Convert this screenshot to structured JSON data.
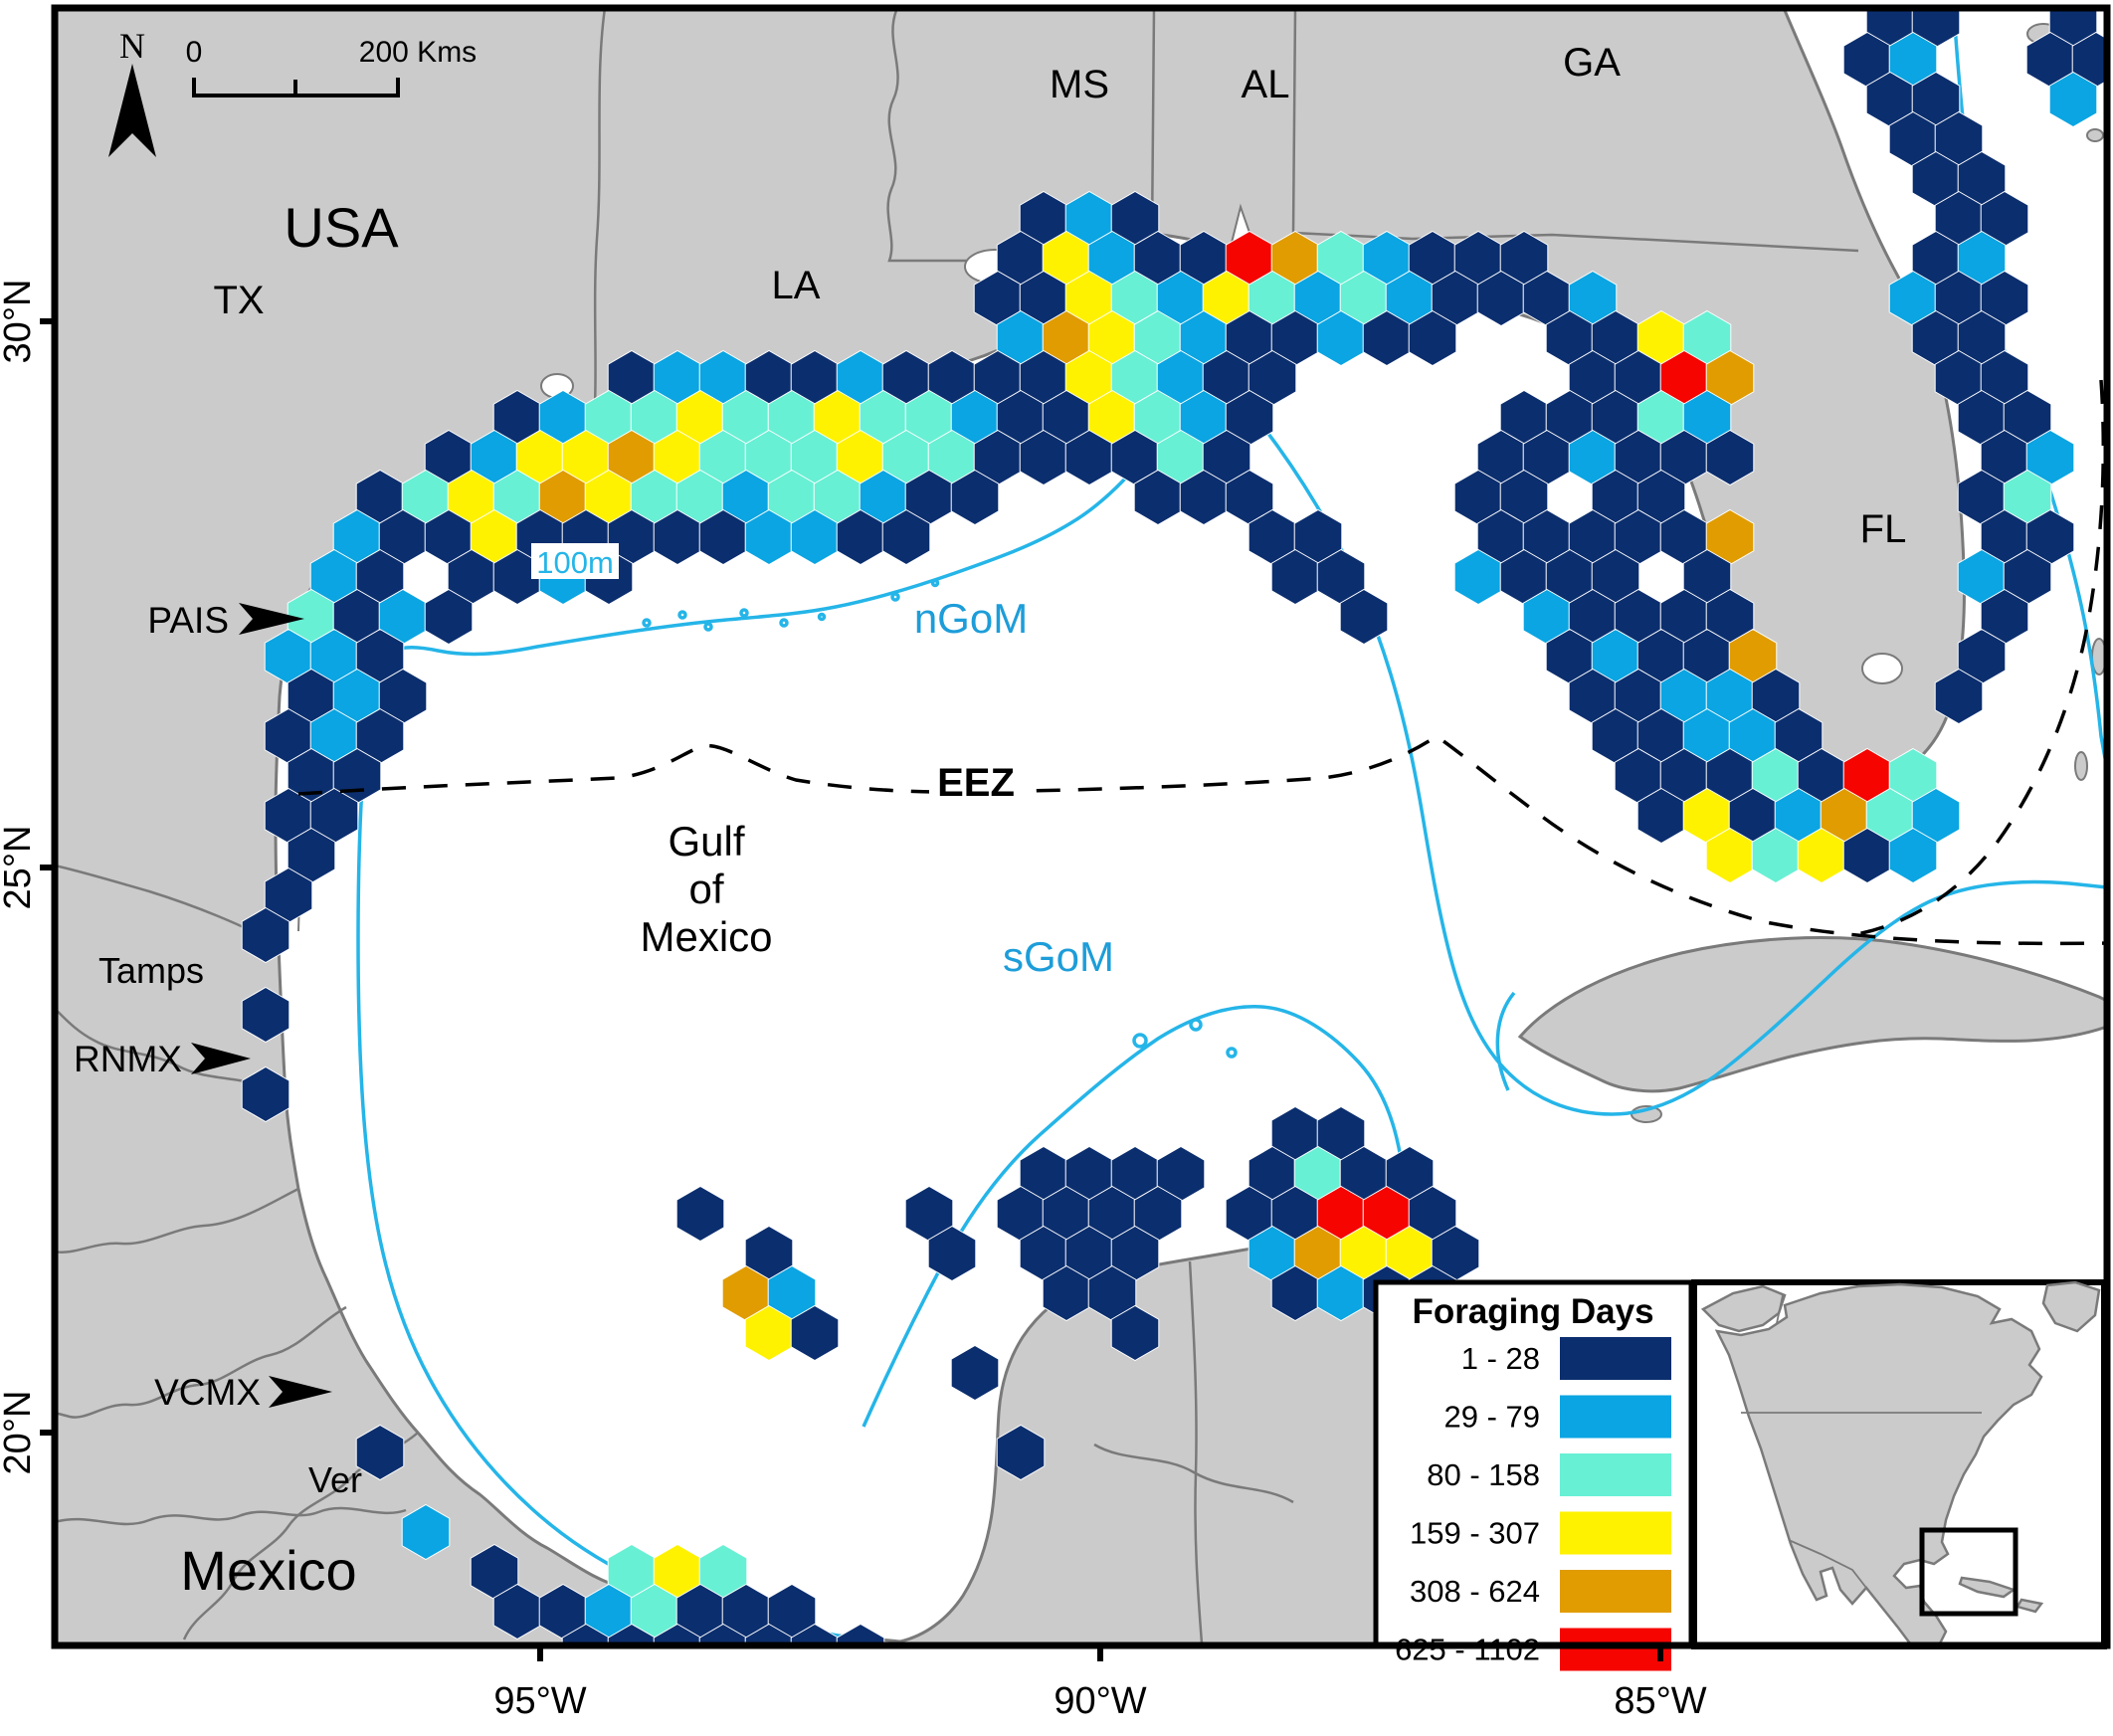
{
  "legend": {
    "title": "Foraging Days",
    "classes": [
      {
        "label": "1 - 28",
        "color": "#0b2e6e"
      },
      {
        "label": "29 - 79",
        "color": "#0aa5e2"
      },
      {
        "label": "80 - 158",
        "color": "#67f0d4"
      },
      {
        "label": "159 - 307",
        "color": "#fef200"
      },
      {
        "label": "308 - 624",
        "color": "#e09c00"
      },
      {
        "label": "625 - 1102",
        "color": "#f50400"
      }
    ]
  },
  "compass": {
    "label": "N"
  },
  "scale_bar": {
    "start_label": "0",
    "end_label": "200 Kms"
  },
  "labels": {
    "usa": "USA",
    "mexico": "Mexico",
    "tx": "TX",
    "la": "LA",
    "ms": "MS",
    "al": "AL",
    "ga": "GA",
    "fl": "FL",
    "tamps": "Tamps",
    "ver": "Ver",
    "ngom": "nGoM",
    "sgom": "sGoM",
    "eez": "EEZ",
    "contour": "100m",
    "gulf1": "Gulf",
    "gulf2": "of",
    "gulf3": "Mexico"
  },
  "sites": [
    {
      "label": "PAIS"
    },
    {
      "label": "RNMX"
    },
    {
      "label": "VCMX"
    }
  ],
  "axes": {
    "lat": [
      "30°N",
      "25°N",
      "20°N"
    ],
    "lon": [
      "95°W",
      "90°W",
      "85°W"
    ]
  },
  "map_colors": {
    "land": "#cbcbcb",
    "land_border": "#7a7a7a",
    "ocean": "#ffffff",
    "contour_100m": "#25b5e8",
    "water_label": "#1d9dd9"
  },
  "hexes": [
    [
      0,
      40,
      1
    ],
    [
      0,
      41,
      1
    ],
    [
      0,
      44,
      1
    ],
    [
      1,
      39,
      1
    ],
    [
      1,
      40,
      2
    ],
    [
      1,
      43,
      1
    ],
    [
      1,
      44,
      1
    ],
    [
      2,
      40,
      1
    ],
    [
      2,
      41,
      1
    ],
    [
      2,
      44,
      2
    ],
    [
      3,
      40,
      1
    ],
    [
      3,
      41,
      1
    ],
    [
      4,
      41,
      1
    ],
    [
      4,
      42,
      1
    ],
    [
      5,
      21,
      1
    ],
    [
      5,
      22,
      2
    ],
    [
      5,
      23,
      1
    ],
    [
      5,
      41,
      1
    ],
    [
      5,
      42,
      1
    ],
    [
      6,
      21,
      1
    ],
    [
      6,
      22,
      4
    ],
    [
      6,
      23,
      2
    ],
    [
      6,
      24,
      1
    ],
    [
      6,
      25,
      1
    ],
    [
      6,
      26,
      6
    ],
    [
      6,
      27,
      5
    ],
    [
      6,
      28,
      3
    ],
    [
      6,
      29,
      2
    ],
    [
      6,
      30,
      1
    ],
    [
      6,
      31,
      1
    ],
    [
      6,
      32,
      1
    ],
    [
      6,
      41,
      1
    ],
    [
      6,
      42,
      2
    ],
    [
      7,
      20,
      1
    ],
    [
      7,
      21,
      1
    ],
    [
      7,
      22,
      4
    ],
    [
      7,
      23,
      3
    ],
    [
      7,
      24,
      2
    ],
    [
      7,
      25,
      4
    ],
    [
      7,
      26,
      3
    ],
    [
      7,
      27,
      2
    ],
    [
      7,
      28,
      3
    ],
    [
      7,
      29,
      2
    ],
    [
      7,
      30,
      1
    ],
    [
      7,
      31,
      1
    ],
    [
      7,
      32,
      1
    ],
    [
      7,
      33,
      2
    ],
    [
      7,
      40,
      2
    ],
    [
      7,
      41,
      1
    ],
    [
      7,
      42,
      1
    ],
    [
      8,
      21,
      2
    ],
    [
      8,
      22,
      5
    ],
    [
      8,
      23,
      4
    ],
    [
      8,
      24,
      3
    ],
    [
      8,
      25,
      2
    ],
    [
      8,
      26,
      1
    ],
    [
      8,
      27,
      1
    ],
    [
      8,
      28,
      2
    ],
    [
      8,
      29,
      1
    ],
    [
      8,
      30,
      1
    ],
    [
      8,
      33,
      1
    ],
    [
      8,
      34,
      1
    ],
    [
      8,
      35,
      4
    ],
    [
      8,
      36,
      3
    ],
    [
      8,
      41,
      1
    ],
    [
      8,
      42,
      1
    ],
    [
      9,
      12,
      1
    ],
    [
      9,
      13,
      2
    ],
    [
      9,
      14,
      2
    ],
    [
      9,
      15,
      1
    ],
    [
      9,
      16,
      1
    ],
    [
      9,
      17,
      2
    ],
    [
      9,
      18,
      1
    ],
    [
      9,
      19,
      1
    ],
    [
      9,
      20,
      1
    ],
    [
      9,
      21,
      1
    ],
    [
      9,
      22,
      4
    ],
    [
      9,
      23,
      3
    ],
    [
      9,
      24,
      2
    ],
    [
      9,
      25,
      1
    ],
    [
      9,
      26,
      1
    ],
    [
      9,
      33,
      1
    ],
    [
      9,
      34,
      1
    ],
    [
      9,
      35,
      6
    ],
    [
      9,
      36,
      5
    ],
    [
      9,
      41,
      1
    ],
    [
      9,
      42,
      1
    ],
    [
      10,
      10,
      1
    ],
    [
      10,
      11,
      2
    ],
    [
      10,
      12,
      3
    ],
    [
      10,
      13,
      3
    ],
    [
      10,
      14,
      4
    ],
    [
      10,
      15,
      3
    ],
    [
      10,
      16,
      3
    ],
    [
      10,
      17,
      4
    ],
    [
      10,
      18,
      3
    ],
    [
      10,
      19,
      3
    ],
    [
      10,
      20,
      2
    ],
    [
      10,
      21,
      1
    ],
    [
      10,
      22,
      1
    ],
    [
      10,
      23,
      4
    ],
    [
      10,
      24,
      3
    ],
    [
      10,
      25,
      2
    ],
    [
      10,
      26,
      1
    ],
    [
      10,
      32,
      1
    ],
    [
      10,
      33,
      1
    ],
    [
      10,
      34,
      1
    ],
    [
      10,
      35,
      3
    ],
    [
      10,
      36,
      2
    ],
    [
      10,
      42,
      1
    ],
    [
      10,
      43,
      1
    ],
    [
      11,
      8,
      1
    ],
    [
      11,
      9,
      2
    ],
    [
      11,
      10,
      4
    ],
    [
      11,
      11,
      4
    ],
    [
      11,
      12,
      5
    ],
    [
      11,
      13,
      4
    ],
    [
      11,
      14,
      3
    ],
    [
      11,
      15,
      3
    ],
    [
      11,
      16,
      3
    ],
    [
      11,
      17,
      4
    ],
    [
      11,
      18,
      3
    ],
    [
      11,
      19,
      3
    ],
    [
      11,
      20,
      1
    ],
    [
      11,
      21,
      1
    ],
    [
      11,
      22,
      1
    ],
    [
      11,
      23,
      1
    ],
    [
      11,
      24,
      3
    ],
    [
      11,
      25,
      1
    ],
    [
      11,
      31,
      1
    ],
    [
      11,
      32,
      1
    ],
    [
      11,
      33,
      2
    ],
    [
      11,
      34,
      1
    ],
    [
      11,
      35,
      1
    ],
    [
      11,
      36,
      1
    ],
    [
      11,
      42,
      1
    ],
    [
      11,
      43,
      2
    ],
    [
      12,
      7,
      1
    ],
    [
      12,
      8,
      3
    ],
    [
      12,
      9,
      4
    ],
    [
      12,
      10,
      3
    ],
    [
      12,
      11,
      5
    ],
    [
      12,
      12,
      4
    ],
    [
      12,
      13,
      3
    ],
    [
      12,
      14,
      3
    ],
    [
      12,
      15,
      2
    ],
    [
      12,
      16,
      3
    ],
    [
      12,
      17,
      3
    ],
    [
      12,
      18,
      2
    ],
    [
      12,
      19,
      1
    ],
    [
      12,
      20,
      1
    ],
    [
      12,
      24,
      1
    ],
    [
      12,
      25,
      1
    ],
    [
      12,
      26,
      1
    ],
    [
      12,
      31,
      1
    ],
    [
      12,
      32,
      1
    ],
    [
      12,
      34,
      1
    ],
    [
      12,
      35,
      1
    ],
    [
      12,
      42,
      1
    ],
    [
      12,
      43,
      3
    ],
    [
      13,
      6,
      2
    ],
    [
      13,
      7,
      1
    ],
    [
      13,
      8,
      1
    ],
    [
      13,
      9,
      4
    ],
    [
      13,
      10,
      1
    ],
    [
      13,
      11,
      1
    ],
    [
      13,
      12,
      1
    ],
    [
      13,
      13,
      1
    ],
    [
      13,
      14,
      1
    ],
    [
      13,
      15,
      2
    ],
    [
      13,
      16,
      2
    ],
    [
      13,
      17,
      1
    ],
    [
      13,
      18,
      1
    ],
    [
      13,
      26,
      1
    ],
    [
      13,
      27,
      1
    ],
    [
      13,
      31,
      1
    ],
    [
      13,
      32,
      1
    ],
    [
      13,
      33,
      1
    ],
    [
      13,
      34,
      1
    ],
    [
      13,
      35,
      1
    ],
    [
      13,
      36,
      5
    ],
    [
      13,
      42,
      1
    ],
    [
      13,
      43,
      1
    ],
    [
      14,
      6,
      2
    ],
    [
      14,
      7,
      1
    ],
    [
      14,
      9,
      1
    ],
    [
      14,
      10,
      1
    ],
    [
      14,
      11,
      2
    ],
    [
      14,
      12,
      1
    ],
    [
      14,
      27,
      1
    ],
    [
      14,
      28,
      1
    ],
    [
      14,
      31,
      2
    ],
    [
      14,
      32,
      1
    ],
    [
      14,
      33,
      1
    ],
    [
      14,
      34,
      1
    ],
    [
      14,
      36,
      1
    ],
    [
      14,
      42,
      2
    ],
    [
      14,
      43,
      1
    ],
    [
      15,
      5,
      3
    ],
    [
      15,
      6,
      1
    ],
    [
      15,
      7,
      2
    ],
    [
      15,
      8,
      1
    ],
    [
      15,
      28,
      1
    ],
    [
      15,
      32,
      2
    ],
    [
      15,
      33,
      1
    ],
    [
      15,
      34,
      1
    ],
    [
      15,
      35,
      1
    ],
    [
      15,
      36,
      1
    ],
    [
      15,
      42,
      1
    ],
    [
      16,
      5,
      2
    ],
    [
      16,
      6,
      2
    ],
    [
      16,
      7,
      1
    ],
    [
      16,
      33,
      1
    ],
    [
      16,
      34,
      2
    ],
    [
      16,
      35,
      1
    ],
    [
      16,
      36,
      1
    ],
    [
      16,
      37,
      5
    ],
    [
      16,
      42,
      1
    ],
    [
      17,
      5,
      1
    ],
    [
      17,
      6,
      2
    ],
    [
      17,
      7,
      1
    ],
    [
      17,
      33,
      1
    ],
    [
      17,
      34,
      1
    ],
    [
      17,
      35,
      2
    ],
    [
      17,
      36,
      2
    ],
    [
      17,
      37,
      1
    ],
    [
      17,
      41,
      1
    ],
    [
      18,
      5,
      1
    ],
    [
      18,
      6,
      2
    ],
    [
      18,
      7,
      1
    ],
    [
      18,
      34,
      1
    ],
    [
      18,
      35,
      1
    ],
    [
      18,
      36,
      2
    ],
    [
      18,
      37,
      2
    ],
    [
      18,
      38,
      1
    ],
    [
      19,
      5,
      1
    ],
    [
      19,
      6,
      1
    ],
    [
      19,
      34,
      1
    ],
    [
      19,
      35,
      1
    ],
    [
      19,
      36,
      1
    ],
    [
      19,
      37,
      3
    ],
    [
      19,
      38,
      1
    ],
    [
      19,
      39,
      6
    ],
    [
      19,
      40,
      3
    ],
    [
      20,
      5,
      1
    ],
    [
      20,
      6,
      1
    ],
    [
      20,
      35,
      1
    ],
    [
      20,
      36,
      4
    ],
    [
      20,
      37,
      1
    ],
    [
      20,
      38,
      2
    ],
    [
      20,
      39,
      5
    ],
    [
      20,
      40,
      3
    ],
    [
      20,
      41,
      2
    ],
    [
      21,
      5,
      1
    ],
    [
      21,
      36,
      4
    ],
    [
      21,
      37,
      3
    ],
    [
      21,
      38,
      4
    ],
    [
      21,
      39,
      1
    ],
    [
      21,
      40,
      2
    ],
    [
      22,
      5,
      1
    ],
    [
      23,
      4,
      1
    ],
    [
      25,
      4,
      1
    ],
    [
      27,
      4,
      1
    ],
    [
      28,
      27,
      1
    ],
    [
      28,
      28,
      1
    ],
    [
      29,
      21,
      1
    ],
    [
      29,
      22,
      1
    ],
    [
      29,
      23,
      1
    ],
    [
      29,
      24,
      1
    ],
    [
      29,
      26,
      1
    ],
    [
      29,
      27,
      3
    ],
    [
      29,
      28,
      1
    ],
    [
      29,
      29,
      1
    ],
    [
      30,
      14,
      1
    ],
    [
      30,
      19,
      1
    ],
    [
      30,
      21,
      1
    ],
    [
      30,
      22,
      1
    ],
    [
      30,
      23,
      1
    ],
    [
      30,
      24,
      1
    ],
    [
      30,
      26,
      1
    ],
    [
      30,
      27,
      1
    ],
    [
      30,
      28,
      6
    ],
    [
      30,
      29,
      6
    ],
    [
      30,
      30,
      1
    ],
    [
      31,
      15,
      1
    ],
    [
      31,
      19,
      1
    ],
    [
      31,
      21,
      1
    ],
    [
      31,
      22,
      1
    ],
    [
      31,
      23,
      1
    ],
    [
      31,
      26,
      2
    ],
    [
      31,
      27,
      5
    ],
    [
      31,
      28,
      4
    ],
    [
      31,
      29,
      4
    ],
    [
      31,
      30,
      1
    ],
    [
      32,
      15,
      5
    ],
    [
      32,
      16,
      2
    ],
    [
      32,
      22,
      1
    ],
    [
      32,
      23,
      1
    ],
    [
      32,
      27,
      1
    ],
    [
      32,
      28,
      2
    ],
    [
      32,
      29,
      1
    ],
    [
      32,
      30,
      1
    ],
    [
      33,
      15,
      4
    ],
    [
      33,
      16,
      1
    ],
    [
      33,
      23,
      1
    ],
    [
      33,
      29,
      1
    ],
    [
      33,
      30,
      1
    ],
    [
      34,
      20,
      1
    ],
    [
      34,
      30,
      1
    ],
    [
      35,
      30,
      1
    ],
    [
      36,
      7,
      1
    ],
    [
      36,
      21,
      1
    ],
    [
      38,
      8,
      2
    ],
    [
      39,
      9,
      1
    ],
    [
      39,
      12,
      3
    ],
    [
      39,
      13,
      4
    ],
    [
      39,
      14,
      3
    ],
    [
      40,
      10,
      1
    ],
    [
      40,
      11,
      1
    ],
    [
      40,
      12,
      2
    ],
    [
      40,
      13,
      3
    ],
    [
      40,
      14,
      1
    ],
    [
      40,
      15,
      1
    ],
    [
      40,
      16,
      1
    ],
    [
      41,
      11,
      1
    ],
    [
      41,
      12,
      1
    ],
    [
      41,
      13,
      1
    ],
    [
      41,
      14,
      1
    ],
    [
      41,
      15,
      1
    ],
    [
      41,
      16,
      1
    ],
    [
      41,
      17,
      1
    ]
  ]
}
